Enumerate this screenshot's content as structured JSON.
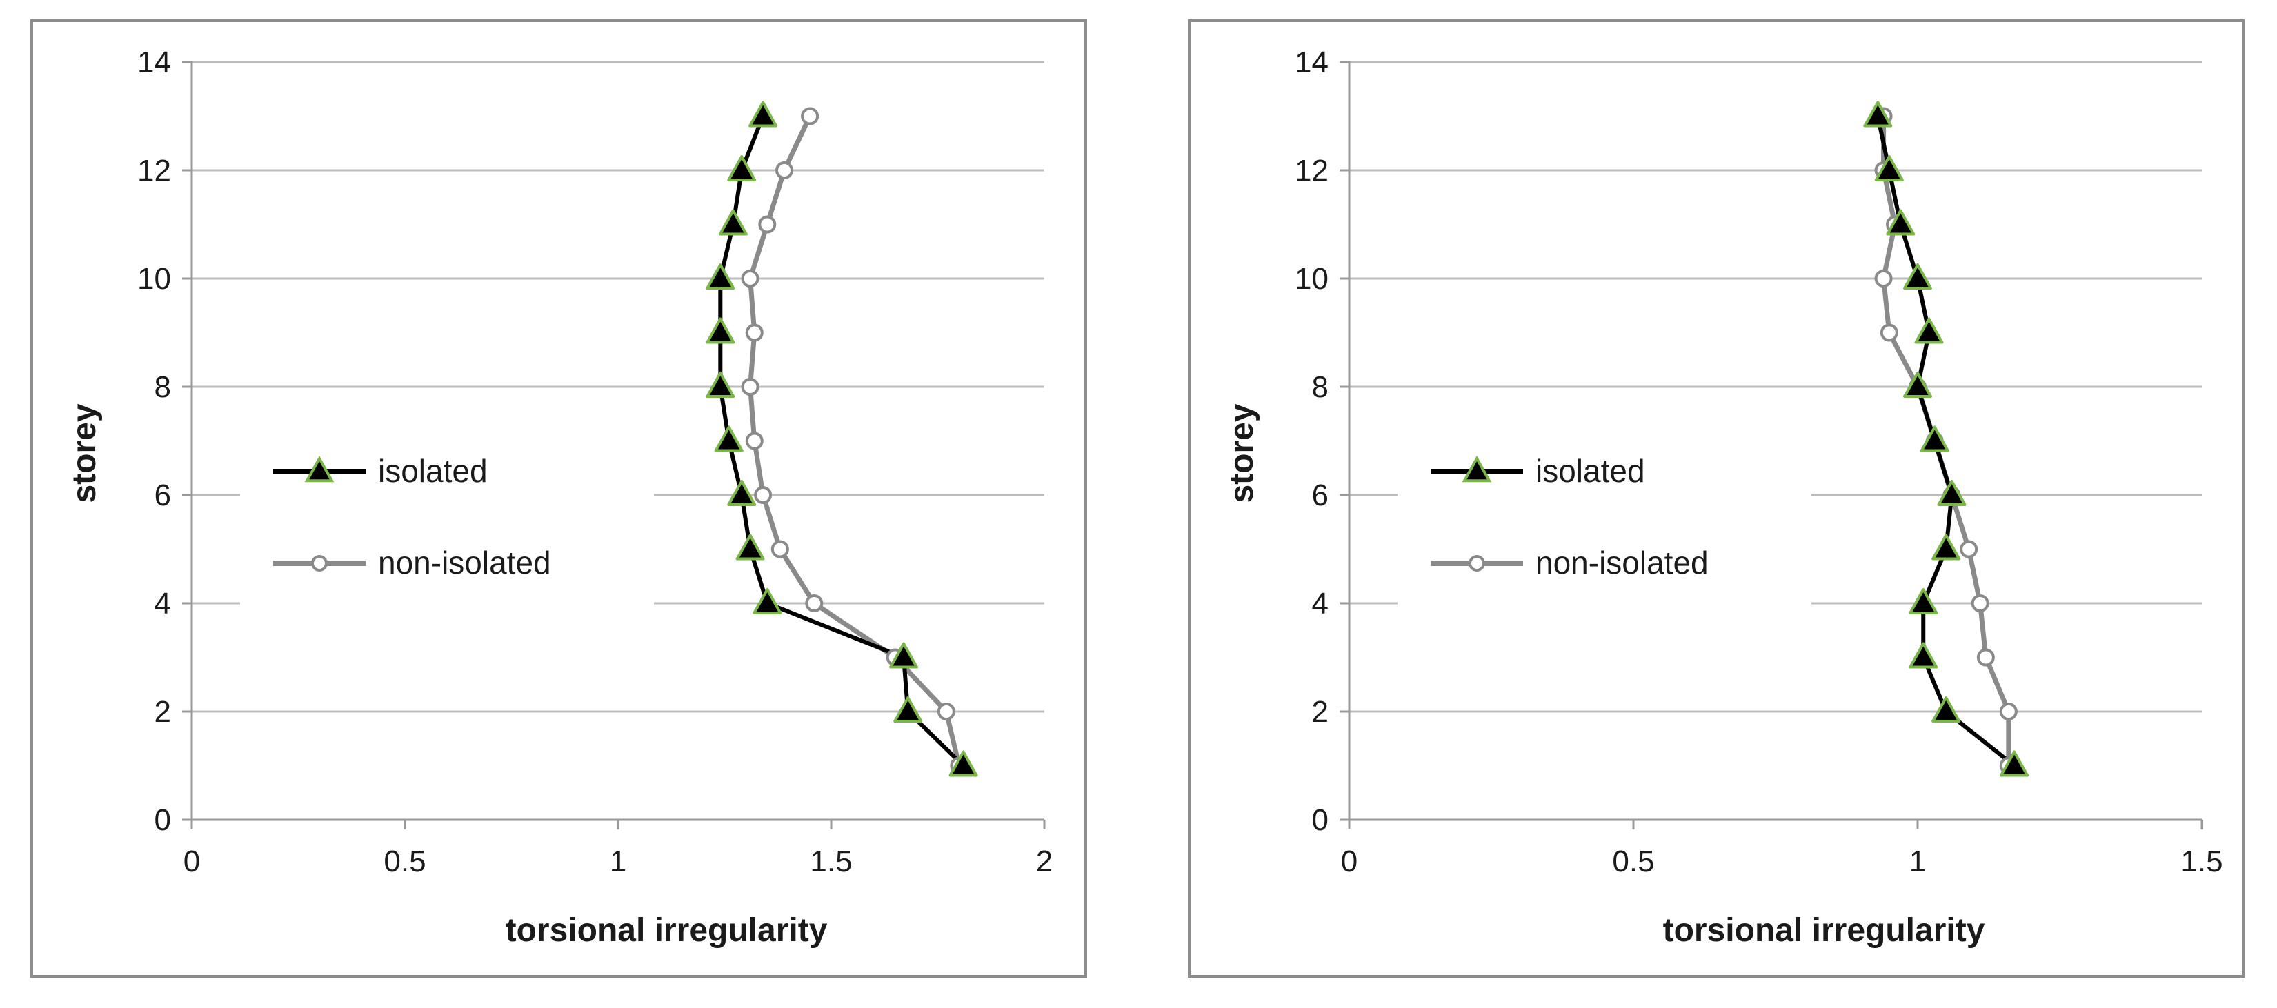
{
  "chart_data": [
    {
      "type": "line",
      "xlabel": "torsional irregularity",
      "ylabel": "storey",
      "xlim": [
        0,
        2
      ],
      "ylim": [
        0,
        14
      ],
      "xticks": [
        0,
        0.5,
        1,
        1.5,
        2
      ],
      "xtick_labels": [
        "0",
        "0.5",
        "1",
        "1.5",
        "2"
      ],
      "yticks": [
        0,
        2,
        4,
        6,
        8,
        10,
        12,
        14
      ],
      "ytick_labels": [
        "0",
        "2",
        "4",
        "6",
        "8",
        "10",
        "12",
        "14"
      ],
      "grid": "horizontal",
      "legend_position": "left-middle",
      "series": [
        {
          "name": "isolated",
          "color": "#000000",
          "marker": "triangle",
          "marker_fill": "#000000",
          "marker_edge": "#7ab648",
          "x": [
            1.81,
            1.68,
            1.67,
            1.35,
            1.31,
            1.29,
            1.26,
            1.24,
            1.24,
            1.24,
            1.27,
            1.29,
            1.34
          ],
          "y": [
            1,
            2,
            3,
            4,
            5,
            6,
            7,
            8,
            9,
            10,
            11,
            12,
            13
          ]
        },
        {
          "name": "non-isolated",
          "color": "#8a8a8a",
          "marker": "circle",
          "marker_fill": "#ffffff",
          "marker_edge": "#8a8a8a",
          "x": [
            1.8,
            1.77,
            1.65,
            1.46,
            1.38,
            1.34,
            1.32,
            1.31,
            1.32,
            1.31,
            1.35,
            1.39,
            1.45
          ],
          "y": [
            1,
            2,
            3,
            4,
            5,
            6,
            7,
            8,
            9,
            10,
            11,
            12,
            13
          ]
        }
      ]
    },
    {
      "type": "line",
      "xlabel": "torsional irregularity",
      "ylabel": "storey",
      "xlim": [
        0,
        1.5
      ],
      "ylim": [
        0,
        14
      ],
      "xticks": [
        0,
        0.5,
        1,
        1.5
      ],
      "xtick_labels": [
        "0",
        "0.5",
        "1",
        "1.5"
      ],
      "yticks": [
        0,
        2,
        4,
        6,
        8,
        10,
        12,
        14
      ],
      "ytick_labels": [
        "0",
        "2",
        "4",
        "6",
        "8",
        "10",
        "12",
        "14"
      ],
      "grid": "horizontal",
      "legend_position": "left-middle",
      "series": [
        {
          "name": "isolated",
          "color": "#000000",
          "marker": "triangle",
          "marker_fill": "#000000",
          "marker_edge": "#7ab648",
          "x": [
            1.17,
            1.05,
            1.01,
            1.01,
            1.05,
            1.06,
            1.03,
            1.0,
            1.02,
            1.0,
            0.97,
            0.95,
            0.93
          ],
          "y": [
            1,
            2,
            3,
            4,
            5,
            6,
            7,
            8,
            9,
            10,
            11,
            12,
            13
          ]
        },
        {
          "name": "non-isolated",
          "color": "#8a8a8a",
          "marker": "circle",
          "marker_fill": "#ffffff",
          "marker_edge": "#8a8a8a",
          "x": [
            1.16,
            1.16,
            1.12,
            1.11,
            1.09,
            1.06,
            1.03,
            1.0,
            0.95,
            0.94,
            0.96,
            0.94,
            0.94
          ],
          "y": [
            1,
            2,
            3,
            4,
            5,
            6,
            7,
            8,
            9,
            10,
            11,
            12,
            13
          ]
        }
      ]
    }
  ]
}
